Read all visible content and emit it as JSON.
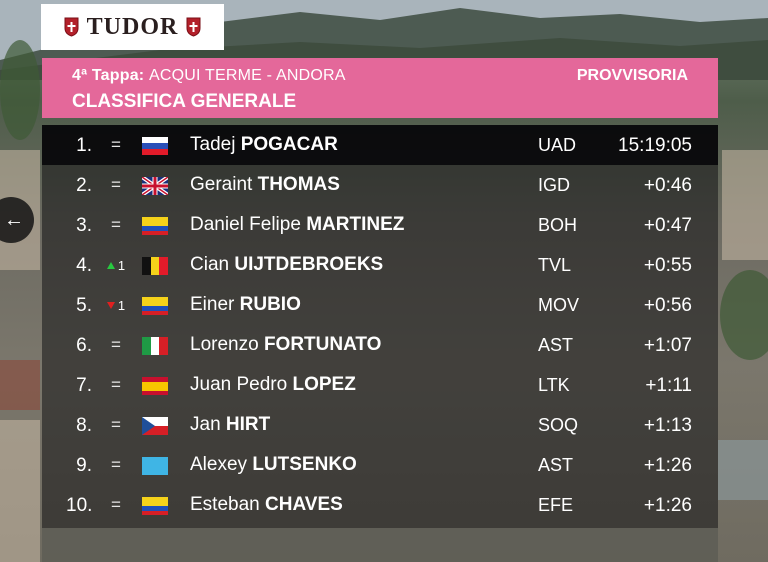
{
  "logo": {
    "brand": "TUDOR",
    "icon": "tudor-shield-icon"
  },
  "header": {
    "stage_label": "4ª Tappa:",
    "route": "ACQUI TERME - ANDORA",
    "status": "PROVVISORIA",
    "title": "CLASSIFICA GENERALE"
  },
  "colors": {
    "header_pink": "#e4689a",
    "up_green": "#28c840",
    "down_red": "#e02020"
  },
  "nav": {
    "back_icon": "arrow-left-icon",
    "back_glyph": "←"
  },
  "standings": [
    {
      "pos": "1.",
      "change": "=",
      "change_num": "",
      "flag": "SLO",
      "first_name": "Tadej",
      "last_name": "POGACAR",
      "team": "UAD",
      "gap": "15:19:05"
    },
    {
      "pos": "2.",
      "change": "=",
      "change_num": "",
      "flag": "GBR",
      "first_name": "Geraint",
      "last_name": "THOMAS",
      "team": "IGD",
      "gap": "+0:46"
    },
    {
      "pos": "3.",
      "change": "=",
      "change_num": "",
      "flag": "COL",
      "first_name": "Daniel Felipe",
      "last_name": "MARTINEZ",
      "team": "BOH",
      "gap": "+0:47"
    },
    {
      "pos": "4.",
      "change": "up",
      "change_num": "1",
      "flag": "BEL",
      "first_name": "Cian",
      "last_name": "UIJTDEBROEKS",
      "team": "TVL",
      "gap": "+0:55"
    },
    {
      "pos": "5.",
      "change": "down",
      "change_num": "1",
      "flag": "COL",
      "first_name": "Einer",
      "last_name": "RUBIO",
      "team": "MOV",
      "gap": "+0:56"
    },
    {
      "pos": "6.",
      "change": "=",
      "change_num": "",
      "flag": "ITA",
      "first_name": "Lorenzo",
      "last_name": "FORTUNATO",
      "team": "AST",
      "gap": "+1:07"
    },
    {
      "pos": "7.",
      "change": "=",
      "change_num": "",
      "flag": "ESP",
      "first_name": "Juan Pedro",
      "last_name": "LOPEZ",
      "team": "LTK",
      "gap": "+1:11"
    },
    {
      "pos": "8.",
      "change": "=",
      "change_num": "",
      "flag": "CZE",
      "first_name": "Jan",
      "last_name": "HIRT",
      "team": "SOQ",
      "gap": "+1:13"
    },
    {
      "pos": "9.",
      "change": "=",
      "change_num": "",
      "flag": "KAZ",
      "first_name": "Alexey",
      "last_name": "LUTSENKO",
      "team": "AST",
      "gap": "+1:26"
    },
    {
      "pos": "10.",
      "change": "=",
      "change_num": "",
      "flag": "COL",
      "first_name": "Esteban",
      "last_name": "CHAVES",
      "team": "EFE",
      "gap": "+1:26"
    }
  ]
}
